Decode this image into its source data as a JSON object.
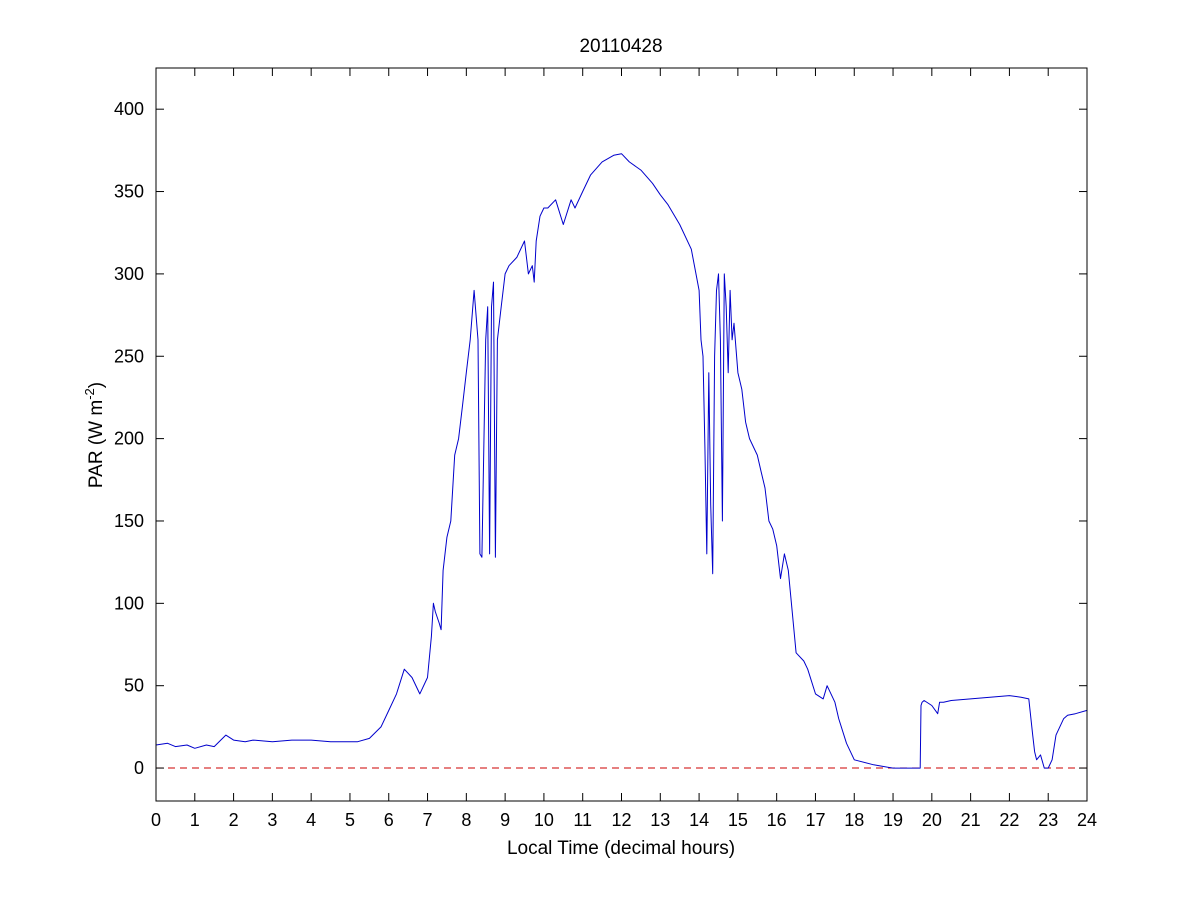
{
  "chart_data": {
    "type": "line",
    "title": "20110428",
    "xlabel": "Local Time (decimal hours)",
    "ylabel_main": "PAR (W m",
    "ylabel_sup": "-2",
    "ylabel_close": ")",
    "xlim": [
      0,
      24
    ],
    "ylim": [
      -20,
      425
    ],
    "xticks": [
      0,
      1,
      2,
      3,
      4,
      5,
      6,
      7,
      8,
      9,
      10,
      11,
      12,
      13,
      14,
      15,
      16,
      17,
      18,
      19,
      20,
      21,
      22,
      23,
      24
    ],
    "yticks": [
      0,
      50,
      100,
      150,
      200,
      250,
      300,
      350,
      400
    ],
    "grid": false,
    "colors": {
      "series": "#0000cc",
      "zero_line": "#cc0000",
      "axes": "#000000"
    },
    "zero_line": {
      "y": 0,
      "style": "dashed"
    },
    "series": [
      {
        "x": [
          0,
          0.3,
          0.5,
          0.8,
          1.0,
          1.3,
          1.5,
          1.8,
          2.0,
          2.3,
          2.5,
          3.0,
          3.5,
          4.0,
          4.5,
          5.0,
          5.2,
          5.5,
          5.8,
          6.0,
          6.2,
          6.4,
          6.6,
          6.8,
          7.0,
          7.1,
          7.15,
          7.2,
          7.3,
          7.35,
          7.4,
          7.5,
          7.6,
          7.7,
          7.8,
          7.9,
          8.0,
          8.1,
          8.2,
          8.3,
          8.35,
          8.4,
          8.5,
          8.55,
          8.6,
          8.65,
          8.7,
          8.75,
          8.8,
          8.85,
          8.9,
          9.0,
          9.1,
          9.3,
          9.5,
          9.6,
          9.7,
          9.75,
          9.8,
          9.9,
          10.0,
          10.1,
          10.3,
          10.5,
          10.7,
          10.8,
          11.0,
          11.2,
          11.5,
          11.8,
          12.0,
          12.2,
          12.5,
          12.8,
          13.0,
          13.2,
          13.5,
          13.8,
          14.0,
          14.05,
          14.1,
          14.15,
          14.2,
          14.25,
          14.3,
          14.35,
          14.4,
          14.45,
          14.5,
          14.55,
          14.6,
          14.65,
          14.7,
          14.75,
          14.8,
          14.85,
          14.9,
          15.0,
          15.1,
          15.2,
          15.3,
          15.5,
          15.6,
          15.7,
          15.8,
          15.9,
          16.0,
          16.1,
          16.2,
          16.3,
          16.4,
          16.5,
          16.7,
          16.8,
          17.0,
          17.2,
          17.3,
          17.5,
          17.6,
          17.8,
          18.0,
          18.5,
          19.0,
          19.3,
          19.7,
          19.72,
          19.75,
          19.8,
          20.0,
          20.15,
          20.2,
          20.3,
          20.5,
          21.0,
          21.5,
          22.0,
          22.3,
          22.5,
          22.6,
          22.65,
          22.7,
          22.8,
          22.9,
          23.0,
          23.1,
          23.2,
          23.4,
          23.5,
          23.7,
          24.0
        ],
        "y": [
          14,
          15,
          13,
          14,
          12,
          14,
          13,
          20,
          17,
          16,
          17,
          16,
          17,
          17,
          16,
          16,
          16,
          18,
          25,
          35,
          45,
          60,
          55,
          45,
          55,
          80,
          100,
          95,
          88,
          84,
          120,
          140,
          150,
          190,
          200,
          220,
          240,
          260,
          290,
          260,
          130,
          128,
          260,
          280,
          130,
          280,
          295,
          128,
          260,
          270,
          280,
          300,
          305,
          310,
          320,
          300,
          305,
          295,
          320,
          335,
          340,
          340,
          345,
          330,
          345,
          340,
          350,
          360,
          368,
          372,
          373,
          368,
          363,
          355,
          348,
          342,
          330,
          315,
          290,
          260,
          250,
          195,
          130,
          240,
          160,
          118,
          250,
          290,
          300,
          260,
          150,
          300,
          280,
          240,
          290,
          260,
          270,
          240,
          230,
          210,
          200,
          190,
          180,
          170,
          150,
          145,
          135,
          115,
          130,
          120,
          95,
          70,
          65,
          60,
          45,
          42,
          50,
          40,
          30,
          15,
          5,
          2,
          0,
          0,
          0,
          38,
          40,
          41,
          38,
          33,
          40,
          40,
          41,
          42,
          43,
          44,
          43,
          42,
          20,
          10,
          5,
          8,
          0,
          0,
          5,
          20,
          30,
          32,
          33,
          35
        ]
      }
    ]
  }
}
